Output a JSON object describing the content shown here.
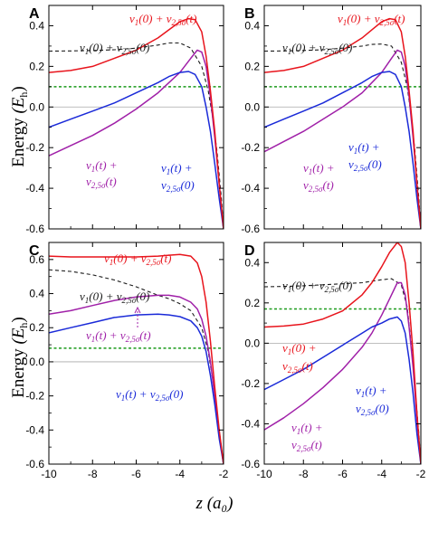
{
  "figure": {
    "ylabel": "Energy (Eₕ)",
    "ylabel_main": "Energy",
    "ylabel_unit": "(E",
    "ylabel_sub": "h",
    "ylabel_close": ")",
    "xlabel_var": "z",
    "xlabel_unit": "(a₀)"
  },
  "colors": {
    "red": "#e8141c",
    "black": "#1a1a1a",
    "purple": "#a020a8",
    "blue": "#1a2ad8",
    "green": "#1a9a1a",
    "gray": "#aaaaaa"
  },
  "chart_data": [
    {
      "panel": "A",
      "type": "line",
      "xlim": [
        -10,
        -2
      ],
      "ylim": [
        -0.6,
        0.5
      ],
      "xticks": [
        "-10",
        "-8",
        "-6",
        "-4",
        "-2"
      ],
      "yticks": [
        "-0.6",
        "-0.4",
        "-0.2",
        "0.0",
        "0.2",
        "0.4"
      ],
      "hlines": [
        {
          "y": 0.1,
          "style": "dotted-green"
        },
        {
          "y": 0.0,
          "style": "gray"
        }
      ],
      "series": [
        {
          "name": "v1(0)+v2,5σ(t)",
          "color": "red",
          "dash": false,
          "x": [
            -10,
            -9,
            -8,
            -7,
            -6,
            -5,
            -4.5,
            -4,
            -3.6,
            -3.3,
            -3.0,
            -2.8,
            -2.6,
            -2.4,
            -2.2,
            -2.0
          ],
          "y": [
            0.17,
            0.18,
            0.2,
            0.24,
            0.28,
            0.34,
            0.38,
            0.42,
            0.435,
            0.43,
            0.37,
            0.25,
            0.08,
            -0.12,
            -0.38,
            -0.6
          ]
        },
        {
          "name": "v1(0)+v2,5σ(0)",
          "color": "black",
          "dash": true,
          "x": [
            -10,
            -9,
            -8,
            -7,
            -6,
            -5,
            -4.5,
            -4,
            -3.5,
            -3.0,
            -2.7,
            -2.5,
            -2.3,
            -2.1,
            -2.0
          ],
          "y": [
            0.275,
            0.276,
            0.278,
            0.282,
            0.29,
            0.305,
            0.315,
            0.315,
            0.29,
            0.2,
            0.08,
            -0.05,
            -0.22,
            -0.45,
            -0.6
          ]
        },
        {
          "name": "v1(t)+v2,5σ(t)",
          "color": "purple",
          "dash": false,
          "x": [
            -10,
            -9,
            -8,
            -7,
            -6,
            -5,
            -4.5,
            -4,
            -3.5,
            -3.2,
            -3.0,
            -2.8,
            -2.6,
            -2.4,
            -2.2,
            -2.0
          ],
          "y": [
            -0.24,
            -0.19,
            -0.14,
            -0.08,
            -0.01,
            0.07,
            0.12,
            0.17,
            0.24,
            0.28,
            0.27,
            0.2,
            0.05,
            -0.15,
            -0.38,
            -0.6
          ]
        },
        {
          "name": "v1(t)+v2,5σ(0)",
          "color": "blue",
          "dash": false,
          "x": [
            -10,
            -9,
            -8,
            -7,
            -6,
            -5,
            -4.5,
            -4,
            -3.6,
            -3.3,
            -3.0,
            -2.8,
            -2.6,
            -2.4,
            -2.2,
            -2.0
          ],
          "y": [
            -0.1,
            -0.06,
            -0.02,
            0.02,
            0.07,
            0.12,
            0.15,
            0.17,
            0.175,
            0.16,
            0.1,
            0.0,
            -0.12,
            -0.28,
            -0.45,
            -0.6
          ]
        }
      ],
      "annotations": [
        {
          "pre": "v",
          "sub": "1",
          "mid": "(0) + v",
          "sub2": "2,5σ",
          "post": "(t)",
          "color": "red"
        },
        {
          "pre": "v",
          "sub": "1",
          "mid": "(0) + v",
          "sub2": "2,5σ",
          "post": "(0)",
          "color": "black"
        },
        {
          "pre": "v",
          "sub": "1",
          "mid": "(t) +",
          "sub2": "",
          "post": "",
          "color": "blue"
        },
        {
          "pre": "v",
          "sub": "2,5σ",
          "mid": "(0)",
          "sub2": "",
          "post": "",
          "color": "blue"
        },
        {
          "pre": "v",
          "sub": "1",
          "mid": "(t) +",
          "sub2": "",
          "post": "",
          "color": "purple"
        },
        {
          "pre": "v",
          "sub": "2,5σ",
          "mid": "(t)",
          "sub2": "",
          "post": "",
          "color": "purple"
        }
      ]
    },
    {
      "panel": "B",
      "type": "line",
      "xlim": [
        -10,
        -2
      ],
      "ylim": [
        -0.6,
        0.5
      ],
      "xticks": [
        "-10",
        "-8",
        "-6",
        "-4",
        "-2"
      ],
      "yticks": [
        "-0.6",
        "-0.4",
        "-0.2",
        "0.0",
        "0.2",
        "0.4"
      ],
      "hlines": [
        {
          "y": 0.1,
          "style": "dotted-green"
        },
        {
          "y": 0.0,
          "style": "gray"
        }
      ],
      "series": [
        {
          "name": "v1(0)+v2,5σ(t)",
          "color": "red",
          "dash": false,
          "x": [
            -10,
            -9,
            -8,
            -7,
            -6,
            -5,
            -4.5,
            -4,
            -3.6,
            -3.3,
            -3.0,
            -2.8,
            -2.6,
            -2.4,
            -2.2,
            -2.0
          ],
          "y": [
            0.17,
            0.18,
            0.2,
            0.24,
            0.28,
            0.34,
            0.38,
            0.42,
            0.435,
            0.43,
            0.37,
            0.25,
            0.08,
            -0.12,
            -0.38,
            -0.6
          ]
        },
        {
          "name": "v1(0)+v2,5σ(0)",
          "color": "black",
          "dash": true,
          "x": [
            -10,
            -9,
            -8,
            -7,
            -6,
            -5,
            -4.5,
            -4,
            -3.5,
            -3.0,
            -2.7,
            -2.5,
            -2.3,
            -2.1,
            -2.0
          ],
          "y": [
            0.275,
            0.276,
            0.278,
            0.282,
            0.29,
            0.3,
            0.308,
            0.31,
            0.3,
            0.22,
            0.1,
            -0.04,
            -0.22,
            -0.45,
            -0.6
          ]
        },
        {
          "name": "v1(t)+v2,5σ(t)",
          "color": "purple",
          "dash": false,
          "x": [
            -10,
            -9,
            -8,
            -7,
            -6,
            -5,
            -4.5,
            -4,
            -3.5,
            -3.2,
            -3.0,
            -2.8,
            -2.6,
            -2.4,
            -2.2,
            -2.0
          ],
          "y": [
            -0.22,
            -0.17,
            -0.12,
            -0.06,
            0.0,
            0.07,
            0.12,
            0.17,
            0.24,
            0.28,
            0.27,
            0.2,
            0.05,
            -0.15,
            -0.38,
            -0.6
          ]
        },
        {
          "name": "v1(t)+v2,5σ(0)",
          "color": "blue",
          "dash": false,
          "x": [
            -10,
            -9,
            -8,
            -7,
            -6,
            -5,
            -4.5,
            -4,
            -3.6,
            -3.3,
            -3.0,
            -2.8,
            -2.6,
            -2.4,
            -2.2,
            -2.0
          ],
          "y": [
            -0.1,
            -0.06,
            -0.02,
            0.02,
            0.07,
            0.12,
            0.15,
            0.17,
            0.175,
            0.16,
            0.1,
            0.0,
            -0.12,
            -0.28,
            -0.45,
            -0.6
          ]
        }
      ],
      "annotations": [
        {
          "pre": "v",
          "sub": "1",
          "mid": "(0) + v",
          "sub2": "2,5σ",
          "post": "(t)",
          "color": "red"
        },
        {
          "pre": "v",
          "sub": "1",
          "mid": "(0) + v",
          "sub2": "2,5σ",
          "post": "(0)",
          "color": "black"
        },
        {
          "pre": "v",
          "sub": "1",
          "mid": "(t) +",
          "sub2": "",
          "post": "",
          "color": "blue"
        },
        {
          "pre": "v",
          "sub": "2,5σ",
          "mid": "(0)",
          "sub2": "",
          "post": "",
          "color": "blue"
        },
        {
          "pre": "v",
          "sub": "1",
          "mid": "(t) +",
          "sub2": "",
          "post": "",
          "color": "purple"
        },
        {
          "pre": "v",
          "sub": "2,5σ",
          "mid": "(t)",
          "sub2": "",
          "post": "",
          "color": "purple"
        }
      ]
    },
    {
      "panel": "C",
      "type": "line",
      "xlim": [
        -10,
        -2
      ],
      "ylim": [
        -0.6,
        0.7
      ],
      "xticks": [
        "-10",
        "-8",
        "-6",
        "-4",
        "-2"
      ],
      "yticks": [
        "-0.6",
        "-0.4",
        "-0.2",
        "0.0",
        "0.2",
        "0.4",
        "0.6"
      ],
      "hlines": [
        {
          "y": 0.08,
          "style": "dotted-green"
        },
        {
          "y": 0.0,
          "style": "gray"
        }
      ],
      "series": [
        {
          "name": "v1(0)+v2,5σ(t)",
          "color": "red",
          "dash": false,
          "x": [
            -10,
            -9,
            -8,
            -7,
            -6,
            -5,
            -4.5,
            -4,
            -3.5,
            -3.2,
            -3.0,
            -2.8,
            -2.6,
            -2.4,
            -2.2,
            -2.0
          ],
          "y": [
            0.62,
            0.615,
            0.615,
            0.615,
            0.615,
            0.62,
            0.625,
            0.63,
            0.62,
            0.58,
            0.5,
            0.35,
            0.12,
            -0.15,
            -0.4,
            -0.6
          ]
        },
        {
          "name": "v1(0)+v2,5σ(0)",
          "color": "black",
          "dash": true,
          "x": [
            -10,
            -9,
            -8,
            -7,
            -6,
            -5,
            -4.5,
            -4,
            -3.5,
            -3.0,
            -2.7,
            -2.5,
            -2.3,
            -2.1,
            -2.0
          ],
          "y": [
            0.54,
            0.53,
            0.51,
            0.48,
            0.44,
            0.39,
            0.37,
            0.34,
            0.3,
            0.2,
            0.06,
            -0.1,
            -0.3,
            -0.5,
            -0.6
          ]
        },
        {
          "name": "v1(t)+v2,5σ(t)",
          "color": "purple",
          "dash": false,
          "x": [
            -10,
            -9,
            -8,
            -7,
            -6,
            -5,
            -4.5,
            -4,
            -3.5,
            -3.2,
            -3.0,
            -2.8,
            -2.6,
            -2.4,
            -2.2,
            -2.0
          ],
          "y": [
            0.28,
            0.3,
            0.33,
            0.36,
            0.38,
            0.39,
            0.39,
            0.38,
            0.35,
            0.31,
            0.25,
            0.15,
            0.0,
            -0.2,
            -0.42,
            -0.6
          ]
        },
        {
          "name": "v1(t)+v2,5σ(0)",
          "color": "blue",
          "dash": false,
          "x": [
            -10,
            -9,
            -8,
            -7,
            -6,
            -5,
            -4.5,
            -4,
            -3.5,
            -3.2,
            -3.0,
            -2.8,
            -2.6,
            -2.4,
            -2.2,
            -2.0
          ],
          "y": [
            0.17,
            0.2,
            0.23,
            0.26,
            0.275,
            0.28,
            0.275,
            0.265,
            0.24,
            0.2,
            0.15,
            0.06,
            -0.08,
            -0.25,
            -0.45,
            -0.6
          ]
        }
      ],
      "annotations": [
        {
          "pre": "v",
          "sub": "1",
          "mid": "(0) + v",
          "sub2": "2,5σ",
          "post": "(t)",
          "color": "red"
        },
        {
          "pre": "v",
          "sub": "1",
          "mid": "(0) + v",
          "sub2": "2,5σ",
          "post": "(0)",
          "color": "black"
        },
        {
          "pre": "v",
          "sub": "1",
          "mid": "(t) + v",
          "sub2": "2,5σ",
          "post": "(t)",
          "color": "purple"
        },
        {
          "pre": "v",
          "sub": "1",
          "mid": "(t) + v",
          "sub2": "2,5σ",
          "post": "(0)",
          "color": "blue"
        }
      ]
    },
    {
      "panel": "D",
      "type": "line",
      "xlim": [
        -10,
        -2
      ],
      "ylim": [
        -0.6,
        0.5
      ],
      "xticks": [
        "-10",
        "-8",
        "-6",
        "-4",
        "-2"
      ],
      "yticks": [
        "-0.6",
        "-0.4",
        "-0.2",
        "0.0",
        "0.2",
        "0.4"
      ],
      "hlines": [
        {
          "y": 0.17,
          "style": "dotted-green"
        },
        {
          "y": 0.0,
          "style": "gray"
        }
      ],
      "series": [
        {
          "name": "v1(0)+v2,5σ(t)",
          "color": "red",
          "dash": false,
          "x": [
            -10,
            -9,
            -8,
            -7,
            -6,
            -5,
            -4.5,
            -4,
            -3.6,
            -3.2,
            -3.0,
            -2.8,
            -2.6,
            -2.4,
            -2.2,
            -2.0
          ],
          "y": [
            0.08,
            0.085,
            0.095,
            0.12,
            0.16,
            0.24,
            0.3,
            0.38,
            0.45,
            0.5,
            0.48,
            0.4,
            0.2,
            -0.05,
            -0.35,
            -0.6
          ]
        },
        {
          "name": "v1(0)+v2,5σ(0)",
          "color": "black",
          "dash": true,
          "x": [
            -10,
            -9,
            -8,
            -7,
            -6,
            -5,
            -4.5,
            -4,
            -3.5,
            -3.0,
            -2.7,
            -2.5,
            -2.3,
            -2.1,
            -2.0
          ],
          "y": [
            0.28,
            0.282,
            0.285,
            0.29,
            0.295,
            0.3,
            0.308,
            0.315,
            0.32,
            0.29,
            0.18,
            0.0,
            -0.22,
            -0.45,
            -0.6
          ]
        },
        {
          "name": "v1(t)+v2,5σ(t)",
          "color": "purple",
          "dash": false,
          "x": [
            -10,
            -9,
            -8,
            -7,
            -6,
            -5,
            -4.5,
            -4,
            -3.6,
            -3.2,
            -3.0,
            -2.8,
            -2.6,
            -2.4,
            -2.2,
            -2.0
          ],
          "y": [
            -0.43,
            -0.37,
            -0.3,
            -0.22,
            -0.13,
            -0.02,
            0.05,
            0.14,
            0.22,
            0.3,
            0.3,
            0.24,
            0.08,
            -0.12,
            -0.38,
            -0.6
          ]
        },
        {
          "name": "v1(t)+v2,5σ(0)",
          "color": "blue",
          "dash": false,
          "x": [
            -10,
            -9,
            -8,
            -7,
            -6,
            -5,
            -4.5,
            -4,
            -3.6,
            -3.2,
            -3.0,
            -2.8,
            -2.6,
            -2.4,
            -2.2,
            -2.0
          ],
          "y": [
            -0.23,
            -0.18,
            -0.13,
            -0.07,
            -0.01,
            0.05,
            0.08,
            0.1,
            0.12,
            0.13,
            0.11,
            0.05,
            -0.08,
            -0.25,
            -0.45,
            -0.6
          ]
        }
      ],
      "annotations": [
        {
          "pre": "v",
          "sub": "1",
          "mid": "(0) + v",
          "sub2": "2,5σ",
          "post": "(0)",
          "color": "black"
        },
        {
          "pre": "v",
          "sub": "1",
          "mid": "(0) +",
          "sub2": "",
          "post": "",
          "color": "red"
        },
        {
          "pre": "v",
          "sub": "2,5σ",
          "mid": "(t)",
          "sub2": "",
          "post": "",
          "color": "red"
        },
        {
          "pre": "v",
          "sub": "1",
          "mid": "(t) +",
          "sub2": "",
          "post": "",
          "color": "blue"
        },
        {
          "pre": "v",
          "sub": "2,5σ",
          "mid": "(0)",
          "sub2": "",
          "post": "",
          "color": "blue"
        },
        {
          "pre": "v",
          "sub": "1",
          "mid": "(t) +",
          "sub2": "",
          "post": "",
          "color": "purple"
        },
        {
          "pre": "v",
          "sub": "2,5σ",
          "mid": "(t)",
          "sub2": "",
          "post": "",
          "color": "purple"
        }
      ]
    }
  ]
}
